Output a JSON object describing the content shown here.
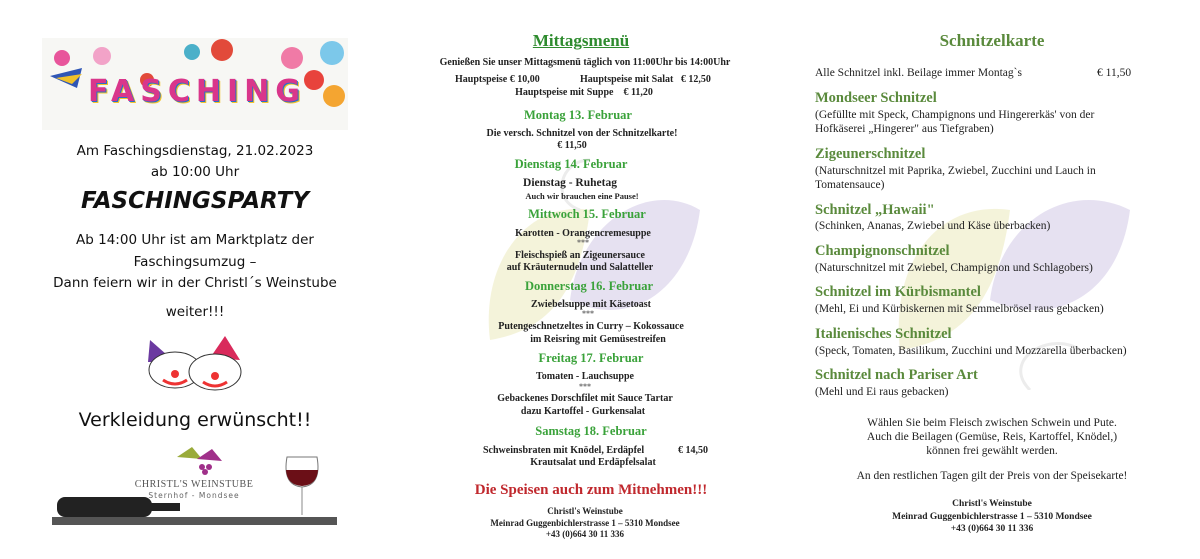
{
  "left": {
    "banner_text": "FASCHING",
    "date_line": "Am Faschingsdienstag, 21.02.2023",
    "time_line": "ab 10:00 Uhr",
    "headline": "FASCHINGSPARTY",
    "body_lines": [
      "Ab 14:00 Uhr ist am Marktplatz der",
      "Faschingsumzug –",
      "Dann feiern wir in der Christl´s Weinstube",
      "weiter!!!"
    ],
    "costume_line": "Verkleidung erwünscht!!",
    "logo_name": "CHRISTL'S WEINSTUBE",
    "logo_sub": "Sternhof - Mondsee"
  },
  "lunch": {
    "title": "Mittagsmenü",
    "intro": "Genießen Sie unser Mittagsmenü täglich von 11:00Uhr bis 14:00Uhr",
    "price_main": "Hauptspeise € 10,00",
    "price_salad": "Hauptspeise mit Salat   € 12,50",
    "price_soup": "Hauptspeise mit Suppe    € 11,20",
    "days": [
      {
        "day": "Montag 13. Februar",
        "lines": [
          "Die versch. Schnitzel von der Schnitzelkarte!",
          "€ 11,50"
        ]
      },
      {
        "day": "Dienstag 14. Februar",
        "lines": [
          "Dienstag - Ruhetag",
          "Auch wir brauchen eine Pause!"
        ]
      },
      {
        "day": "Mittwoch 15. Februar",
        "lines": [
          "Karotten - Orangencremesuppe",
          "***",
          "Fleischspieß an Zigeunersauce",
          "auf Kräuternudeln und Salatteller"
        ]
      },
      {
        "day": "Donnerstag 16. Februar",
        "lines": [
          "Zwiebelsuppe mit Käsetoast",
          "***",
          "Putengeschnetzeltes in Curry – Kokossauce",
          "im Reisring mit Gemüsestreifen"
        ]
      },
      {
        "day": "Freitag 17. Februar",
        "lines": [
          "Tomaten - Lauchsuppe",
          "***",
          "Gebackenes Dorschfilet mit Sauce Tartar",
          "dazu Kartoffel - Gurkensalat"
        ]
      },
      {
        "day": "Samstag 18. Februar",
        "lines": [
          "Schweinsbraten mit Knödel, Erdäpfel",
          "€ 14,50",
          "Krautsalat und Erdäpfelsalat"
        ]
      }
    ],
    "takeaway": "Die Speisen auch zum Mitnehmen!!!",
    "footer": [
      "Christl's Weinstube",
      "Meinrad Guggenbichlerstrasse 1 – 5310 Mondsee",
      "+43 (0)664 30 11 336"
    ]
  },
  "schnitzel": {
    "title": "Schnitzelkarte",
    "intro": "Alle Schnitzel inkl. Beilage immer Montag`s",
    "intro_price": "€ 11,50",
    "items": [
      {
        "name": "Mondseer Schnitzel",
        "desc": [
          "(Gefüllte mit Speck, Champignons und Hingererkäs' von der",
          "Hofkäserei „Hingerer\" aus Tiefgraben)"
        ]
      },
      {
        "name": "Zigeunerschnitzel",
        "desc": [
          "(Naturschnitzel mit Paprika, Zwiebel, Zucchini und Lauch in",
          "Tomatensauce)"
        ]
      },
      {
        "name": "Schnitzel „Hawaii\"",
        "desc": [
          "(Schinken, Ananas, Zwiebel und Käse überbacken)"
        ]
      },
      {
        "name": "Champignonschnitzel",
        "desc": [
          "(Naturschnitzel mit Zwiebel, Champignon und Schlagobers)"
        ]
      },
      {
        "name": "Schnitzel im Kürbismantel",
        "desc": [
          "(Mehl, Ei und Kürbiskernen mit Semmelbrösel raus gebacken)"
        ]
      },
      {
        "name": "Italienisches Schnitzel",
        "desc": [
          "(Speck, Tomaten, Basilikum, Zucchini und Mozzarella überbacken)"
        ]
      },
      {
        "name": "Schnitzel nach Pariser Art",
        "desc": [
          "(Mehl und Ei raus gebacken)"
        ]
      }
    ],
    "notes": [
      "Wählen Sie beim Fleisch zwischen Schwein und Pute.",
      "Auch die Beilagen (Gemüse, Reis, Kartoffel, Knödel,)",
      "können frei gewählt werden."
    ],
    "rest_note": "An den restlichen Tagen gilt der Preis von der Speisekarte!",
    "footer": [
      "Christl's Weinstube",
      "Meinrad Guggenbichlerstrasse 1 – 5310 Mondsee",
      "+43 (0)664 30 11 336"
    ]
  },
  "colors": {
    "day_green": "#3aa23a",
    "schnitzel_green": "#5a8a3c",
    "takeaway_red": "#c0282d"
  }
}
